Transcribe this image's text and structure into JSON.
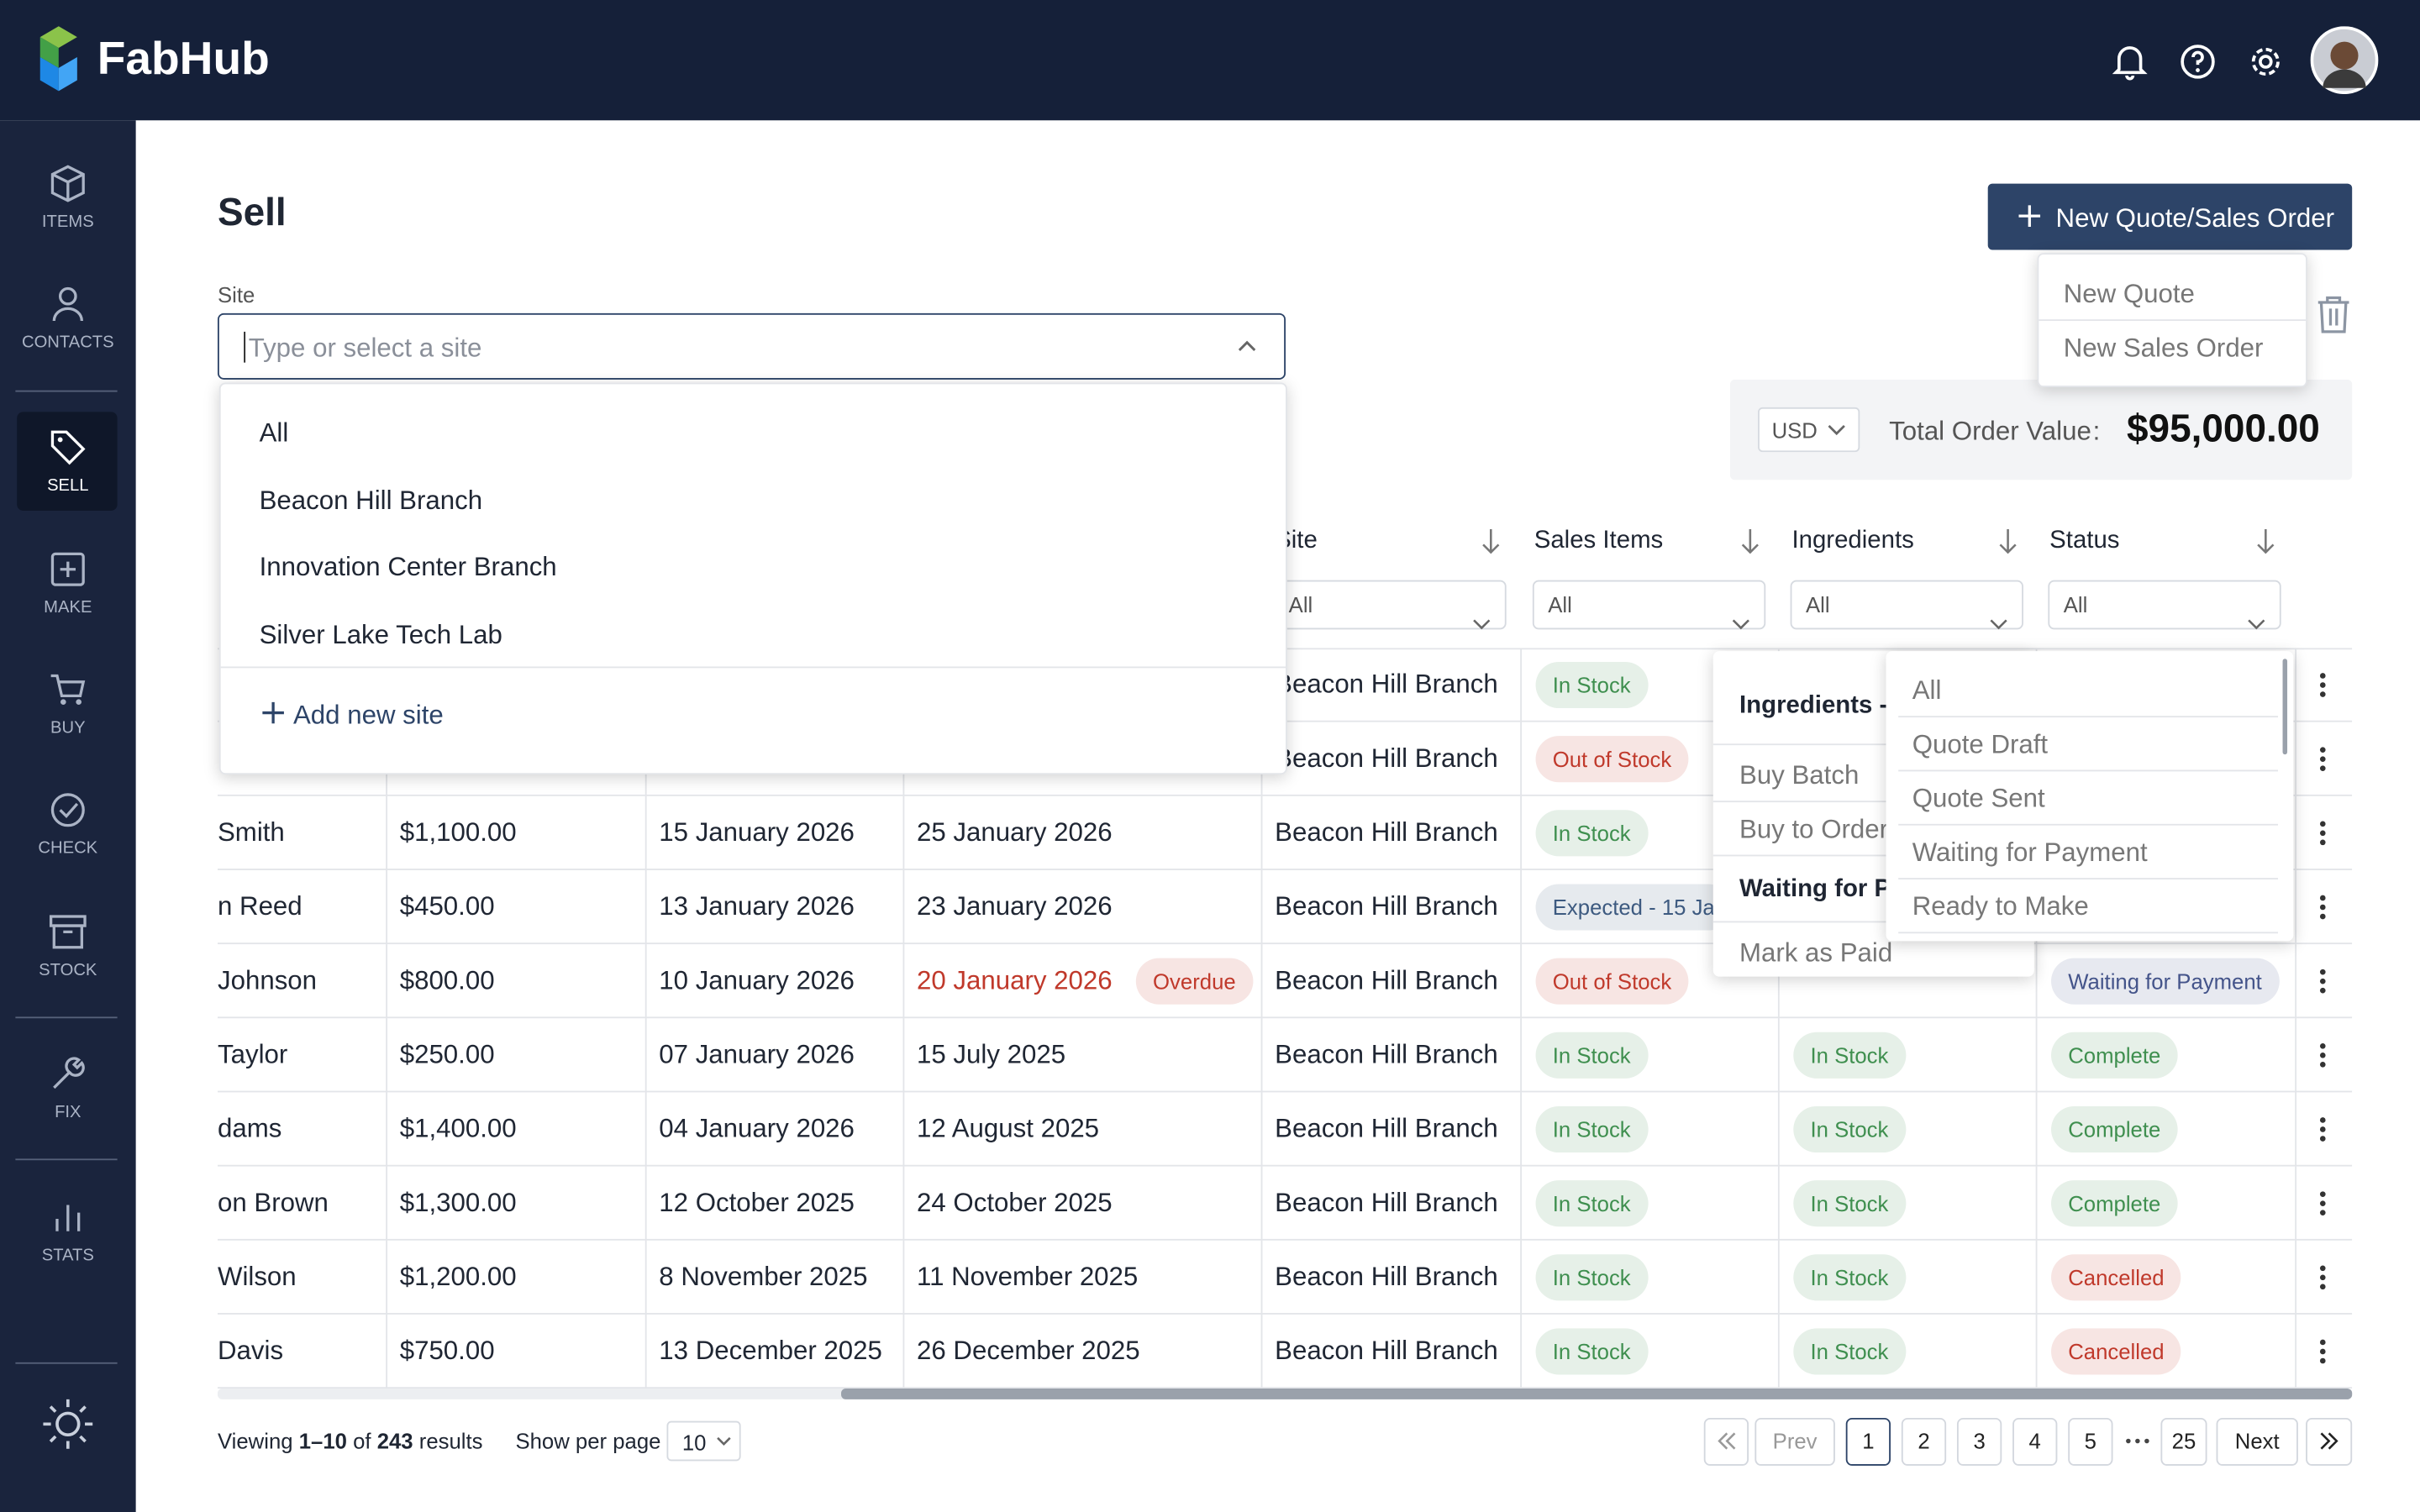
{
  "header": {
    "brand": "FabHub"
  },
  "nav": [
    "ITEMS",
    "CONTACTS",
    "SELL",
    "MAKE",
    "BUY",
    "CHECK",
    "STOCK",
    "FIX",
    "STATS"
  ],
  "page": {
    "title": "Sell",
    "primary_button": "New Quote/Sales Order",
    "create_menu": [
      "New Quote",
      "New Sales Order"
    ]
  },
  "site_filter": {
    "label": "Site",
    "placeholder": "Type or select a site",
    "options": [
      "All",
      "Beacon Hill Branch",
      "Innovation Center Branch",
      "Silver Lake Tech Lab"
    ],
    "add_option": "Add new site"
  },
  "summary": {
    "currency": "USD",
    "total_label": "Total Order Value",
    "separator": ":",
    "total": "$95,000.00"
  },
  "table": {
    "columns": [
      "Site",
      "Sales Items",
      "Ingredients",
      "Status"
    ],
    "filter_default": "All",
    "rows": [
      {
        "site": "Beacon Hill Branch",
        "sales_items": {
          "text": "In Stock",
          "color": "#3f8f4f"
        }
      },
      {
        "site": "Beacon Hill Branch",
        "sales_items": {
          "text": "Out of Stock",
          "color": "#c0392b"
        }
      },
      {
        "customer": "Smith",
        "amount": "$1,100.00",
        "order_date": "15 January 2026",
        "due_date": "25 January 2026",
        "site": "Beacon Hill Branch",
        "sales_items": {
          "text": "In Stock",
          "color": "#3f8f4f"
        }
      },
      {
        "customer": "n Reed",
        "amount": "$450.00",
        "order_date": "13 January 2026",
        "due_date": "23 January 2026",
        "site": "Beacon Hill Branch",
        "sales_items": {
          "text": "Expected - 15 Ja",
          "color": "#3d5a80"
        }
      },
      {
        "customer": "Johnson",
        "amount": "$800.00",
        "order_date": "10 January 2026",
        "due_date": "20 January 2026",
        "due_badge": {
          "text": "Overdue",
          "color": "#c0392b"
        },
        "site": "Beacon Hill Branch",
        "sales_items": {
          "text": "Out of Stock",
          "color": "#c0392b"
        },
        "status": {
          "text": "Waiting for Payment",
          "color": "#44548a"
        }
      },
      {
        "customer": "Taylor",
        "amount": "$250.00",
        "order_date": "07 January 2026",
        "due_date": "15 July 2025",
        "site": "Beacon Hill Branch",
        "sales_items": {
          "text": "In Stock",
          "color": "#3f8f4f"
        },
        "ingredients": {
          "text": "In Stock",
          "color": "#3f8f4f"
        },
        "status": {
          "text": "Complete",
          "color": "#3f8f4f"
        }
      },
      {
        "customer": "dams",
        "amount": "$1,400.00",
        "order_date": "04 January 2026",
        "due_date": "12 August 2025",
        "site": "Beacon Hill Branch",
        "sales_items": {
          "text": "In Stock",
          "color": "#3f8f4f"
        },
        "ingredients": {
          "text": "In Stock",
          "color": "#3f8f4f"
        },
        "status": {
          "text": "Complete",
          "color": "#3f8f4f"
        }
      },
      {
        "customer": "on Brown",
        "amount": "$1,300.00",
        "order_date": "12 October 2025",
        "due_date": "24 October 2025",
        "site": "Beacon Hill Branch",
        "sales_items": {
          "text": "In Stock",
          "color": "#3f8f4f"
        },
        "ingredients": {
          "text": "In Stock",
          "color": "#3f8f4f"
        },
        "status": {
          "text": "Complete",
          "color": "#3f8f4f"
        }
      },
      {
        "customer": "Wilson",
        "amount": "$1,200.00",
        "order_date": "8 November 2025",
        "due_date": "11 November 2025",
        "site": "Beacon Hill Branch",
        "sales_items": {
          "text": "In Stock",
          "color": "#3f8f4f"
        },
        "ingredients": {
          "text": "In Stock",
          "color": "#3f8f4f"
        },
        "status": {
          "text": "Cancelled",
          "color": "#c0392b"
        }
      },
      {
        "customer": "Davis",
        "amount": "$750.00",
        "order_date": "13 December 2025",
        "due_date": "26 December 2025",
        "site": "Beacon Hill Branch",
        "sales_items": {
          "text": "In Stock",
          "color": "#3f8f4f"
        },
        "ingredients": {
          "text": "In Stock",
          "color": "#3f8f4f"
        },
        "status": {
          "text": "Cancelled",
          "color": "#c0392b"
        }
      }
    ]
  },
  "ingredients_menu": {
    "heading": "Ingredients -",
    "items": [
      "Buy Batch",
      "Buy to Order"
    ],
    "selected": "Waiting for P",
    "more": [
      "Mark as Paid"
    ]
  },
  "status_menu": [
    "All",
    "Quote Draft",
    "Quote Sent",
    "Waiting for Payment",
    "Ready to Make"
  ],
  "pagination": {
    "viewing": "Viewing",
    "range": "1–10",
    "of": "of",
    "total": "243",
    "results": "results",
    "per_page_label": "Show per page",
    "per_page": "10",
    "prev": "Prev",
    "pages": [
      "1",
      "2",
      "3",
      "4",
      "5"
    ],
    "last": "25",
    "next": "Next"
  }
}
